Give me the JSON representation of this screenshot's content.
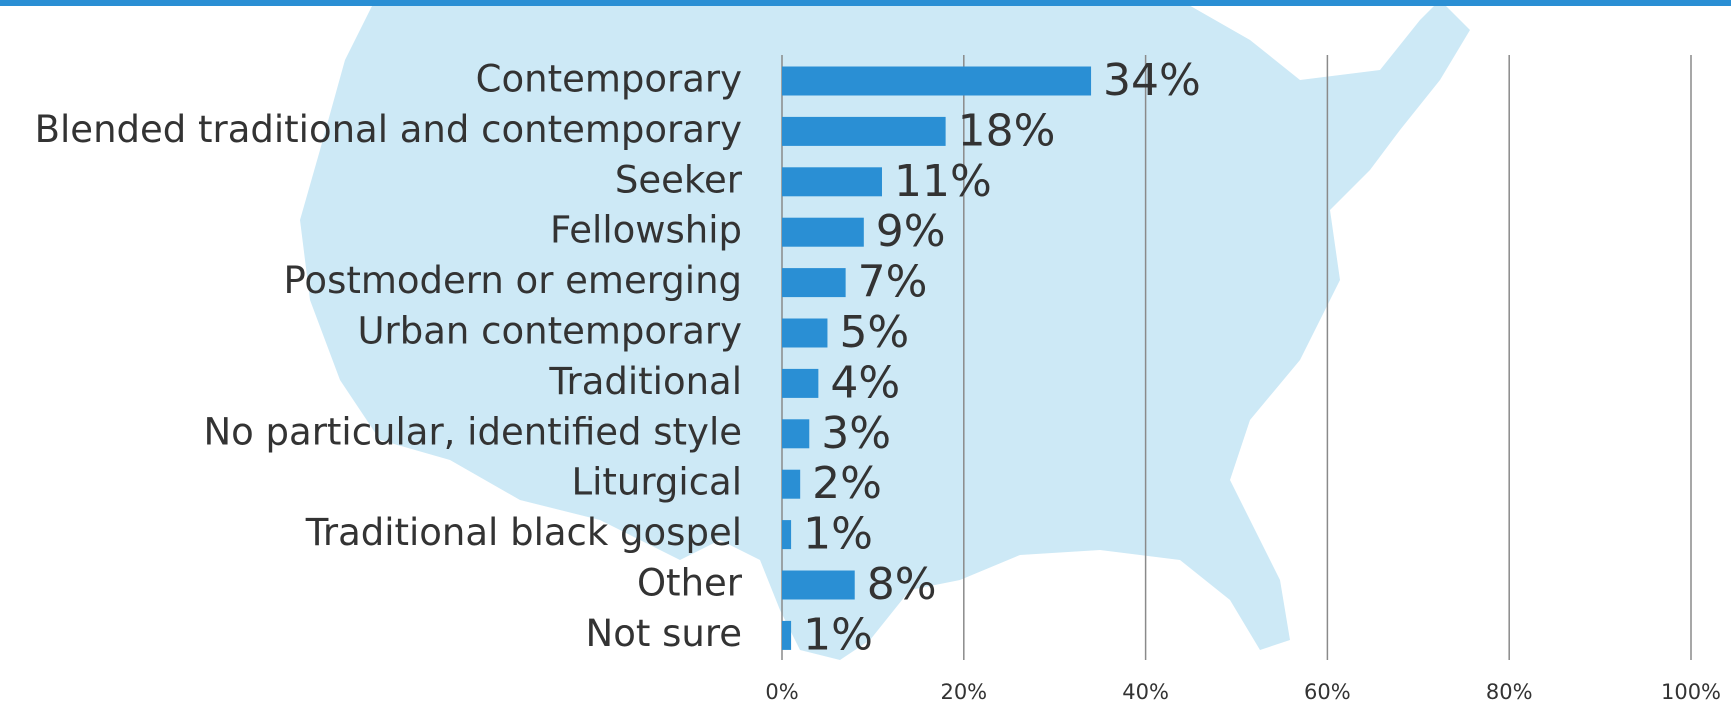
{
  "chart_data": {
    "type": "barh",
    "categories": [
      "Contemporary",
      "Blended traditional and contemporary",
      "Seeker",
      "Fellowship",
      "Postmodern or emerging",
      "Urban contemporary",
      "Traditional",
      "No particular, identified style",
      "Liturgical",
      "Traditional black gospel",
      "Other",
      "Not sure"
    ],
    "values": [
      34,
      18,
      11,
      9,
      7,
      5,
      4,
      3,
      2,
      1,
      8,
      1
    ],
    "value_labels": [
      "34%",
      "18%",
      "11%",
      "9%",
      "7%",
      "5%",
      "4%",
      "3%",
      "2%",
      "1%",
      "8%",
      "1%"
    ],
    "color": "#2a8fd4",
    "xlim": [
      0,
      100
    ],
    "xticks": [
      {
        "value": 0,
        "label": "0%"
      },
      {
        "value": 20,
        "label": "20%"
      },
      {
        "value": 40,
        "label": "40%"
      },
      {
        "value": 60,
        "label": "60%"
      },
      {
        "value": 80,
        "label": "80%"
      },
      {
        "value": 100,
        "label": "100%"
      }
    ],
    "grid": true
  }
}
